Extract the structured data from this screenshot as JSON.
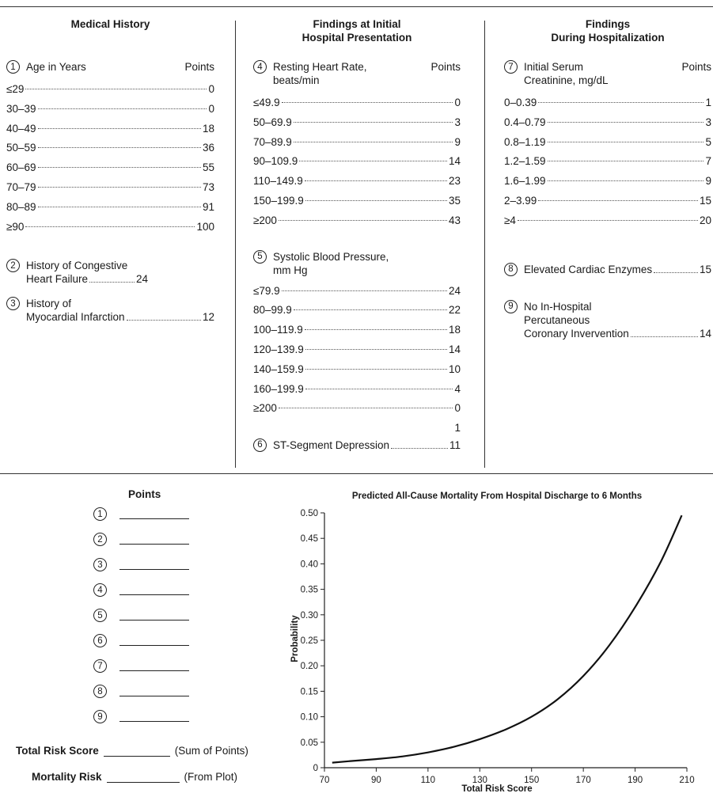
{
  "columns": {
    "medical_history": {
      "title": "Medical History",
      "age": {
        "number": "1",
        "label": "Age in Years",
        "points_label": "Points",
        "rows": [
          {
            "range": "≤29",
            "points": "0"
          },
          {
            "range": "30–39",
            "points": "0"
          },
          {
            "range": "40–49",
            "points": "18"
          },
          {
            "range": "50–59",
            "points": "36"
          },
          {
            "range": "60–69",
            "points": "55"
          },
          {
            "range": "70–79",
            "points": "73"
          },
          {
            "range": "80–89",
            "points": "91"
          },
          {
            "range": "≥90",
            "points": "100"
          }
        ]
      },
      "chf": {
        "number": "2",
        "line1": "History of Congestive",
        "line2": "Heart Failure",
        "points": "24"
      },
      "mi": {
        "number": "3",
        "line1": "History of",
        "line2": "Myocardial Infarction",
        "points": "12"
      }
    },
    "initial_presentation": {
      "title_line1": "Findings at Initial",
      "title_line2": "Hospital Presentation",
      "heart_rate": {
        "number": "4",
        "label_line1": "Resting Heart Rate,",
        "label_line2": "beats/min",
        "points_label": "Points",
        "rows": [
          {
            "range": "≤49.9",
            "points": "0"
          },
          {
            "range": "50–69.9",
            "points": "3"
          },
          {
            "range": "70–89.9",
            "points": "9"
          },
          {
            "range": "90–109.9",
            "points": "14"
          },
          {
            "range": "110–149.9",
            "points": "23"
          },
          {
            "range": "150–199.9",
            "points": "35"
          },
          {
            "range": "≥200",
            "points": "43"
          }
        ]
      },
      "sbp": {
        "number": "5",
        "label_line1": "Systolic Blood Pressure,",
        "label_line2": "mm Hg",
        "rows": [
          {
            "range": "≤79.9",
            "points": "24"
          },
          {
            "range": "80–99.9",
            "points": "22"
          },
          {
            "range": "100–119.9",
            "points": "18"
          },
          {
            "range": "120–139.9",
            "points": "14"
          },
          {
            "range": "140–159.9",
            "points": "10"
          },
          {
            "range": "160–199.9",
            "points": "4"
          },
          {
            "range": "≥200",
            "points": "0"
          }
        ],
        "stray": "1"
      },
      "st": {
        "number": "6",
        "label": "ST-Segment Depression",
        "points": "11"
      }
    },
    "during_hospitalization": {
      "title_line1": "Findings",
      "title_line2": "During Hospitalization",
      "creatinine": {
        "number": "7",
        "label_line1": "Initial Serum",
        "label_line2": "Creatinine, mg/dL",
        "points_label": "Points",
        "rows": [
          {
            "range": "0–0.39",
            "points": "1"
          },
          {
            "range": "0.4–0.79",
            "points": "3"
          },
          {
            "range": "0.8–1.19",
            "points": "5"
          },
          {
            "range": "1.2–1.59",
            "points": "7"
          },
          {
            "range": "1.6–1.99",
            "points": "9"
          },
          {
            "range": "2–3.99",
            "points": "15"
          },
          {
            "range": "≥4",
            "points": "20"
          }
        ]
      },
      "enzymes": {
        "number": "8",
        "label": "Elevated Cardiac Enzymes",
        "points": "15"
      },
      "pci": {
        "number": "9",
        "line1": "No In-Hospital",
        "line2": "Percutaneous",
        "line3": "Coronary Invervention",
        "points": "14"
      }
    }
  },
  "worksheet": {
    "title": "Points",
    "lines": [
      "1",
      "2",
      "3",
      "4",
      "5",
      "6",
      "7",
      "8",
      "9"
    ],
    "total_label": "Total Risk Score",
    "total_note": "(Sum of Points)",
    "mortality_label": "Mortality Risk",
    "mortality_note": "(From Plot)"
  },
  "chart_data": {
    "type": "line",
    "title": "Predicted All-Cause Mortality From Hospital Discharge to 6 Months",
    "xlabel": "Total Risk Score",
    "ylabel": "Probability",
    "xlim": [
      70,
      210
    ],
    "ylim": [
      0,
      0.5
    ],
    "xticks": [
      70,
      90,
      110,
      130,
      150,
      170,
      190,
      210
    ],
    "yticks": [
      "0",
      "0.05",
      "0.10",
      "0.15",
      "0.20",
      "0.25",
      "0.30",
      "0.35",
      "0.40",
      "0.45",
      "0.50"
    ],
    "grid": false,
    "series": [
      {
        "x": [
          73,
          80,
          90,
          100,
          110,
          120,
          130,
          140,
          150,
          160,
          170,
          180,
          190,
          200,
          208
        ],
        "y": [
          0.01,
          0.013,
          0.017,
          0.022,
          0.03,
          0.041,
          0.056,
          0.075,
          0.1,
          0.134,
          0.18,
          0.24,
          0.315,
          0.405,
          0.495
        ]
      }
    ],
    "color": "#111111"
  }
}
